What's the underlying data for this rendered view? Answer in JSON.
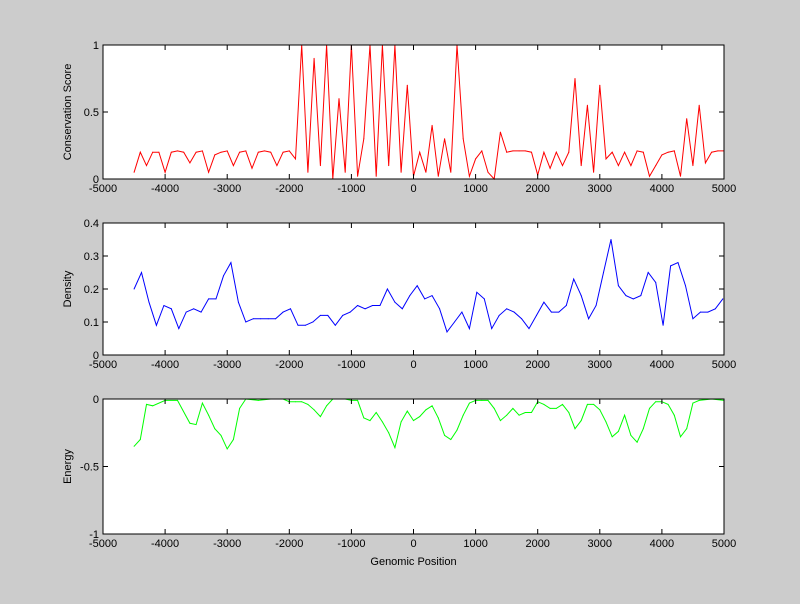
{
  "chart_data": [
    {
      "type": "line",
      "title": "",
      "xlabel": "",
      "ylabel": "Conservation Score",
      "xlim": [
        -5000,
        5000
      ],
      "ylim": [
        0,
        1
      ],
      "xticks": [
        "-5000",
        "-4000",
        "-3000",
        "-2000",
        "-1000",
        "0",
        "1000",
        "2000",
        "3000",
        "4000",
        "5000"
      ],
      "yticks": [
        "0",
        "0.5",
        "1"
      ],
      "color": "#ff0000",
      "series": [
        {
          "name": "conservation",
          "x": [
            -4500,
            -4400,
            -4300,
            -4200,
            -4100,
            -4000,
            -3900,
            -3800,
            -3700,
            -3600,
            -3500,
            -3400,
            -3300,
            -3200,
            -3100,
            -3000,
            -2900,
            -2800,
            -2700,
            -2600,
            -2500,
            -2400,
            -2300,
            -2200,
            -2100,
            -2000,
            -1900,
            -1800,
            -1700,
            -1600,
            -1500,
            -1400,
            -1300,
            -1200,
            -1100,
            -1000,
            -900,
            -800,
            -700,
            -600,
            -500,
            -400,
            -300,
            -200,
            -100,
            0,
            100,
            200,
            300,
            400,
            500,
            600,
            700,
            800,
            900,
            1000,
            1100,
            1200,
            1300,
            1400,
            1500,
            1600,
            1700,
            1800,
            1900,
            2000,
            2100,
            2200,
            2300,
            2400,
            2500,
            2600,
            2700,
            2800,
            2900,
            3000,
            3100,
            3200,
            3300,
            3400,
            3500,
            3600,
            3700,
            3800,
            3900,
            4000,
            4100,
            4200,
            4300,
            4400,
            4500,
            4600,
            4700,
            4800,
            4900,
            5000
          ],
          "y": [
            0.05,
            0.2,
            0.1,
            0.2,
            0.2,
            0.05,
            0.2,
            0.21,
            0.2,
            0.12,
            0.2,
            0.21,
            0.05,
            0.18,
            0.2,
            0.21,
            0.1,
            0.2,
            0.21,
            0.08,
            0.2,
            0.21,
            0.2,
            0.1,
            0.2,
            0.21,
            0.15,
            1.0,
            0.05,
            0.9,
            0.1,
            1.0,
            0.0,
            0.6,
            0.05,
            1.0,
            0.02,
            0.3,
            1.0,
            0.02,
            1.0,
            0.1,
            1.0,
            0.05,
            0.7,
            0.02,
            0.2,
            0.05,
            0.4,
            0.02,
            0.3,
            0.05,
            1.0,
            0.3,
            0.02,
            0.15,
            0.21,
            0.05,
            0.0,
            0.35,
            0.2,
            0.21,
            0.21,
            0.21,
            0.2,
            0.03,
            0.2,
            0.08,
            0.2,
            0.1,
            0.2,
            0.75,
            0.1,
            0.55,
            0.05,
            0.7,
            0.15,
            0.2,
            0.1,
            0.2,
            0.1,
            0.21,
            0.2,
            0.02,
            0.1,
            0.18,
            0.2,
            0.21,
            0.02,
            0.45,
            0.1,
            0.55,
            0.12,
            0.2,
            0.21,
            0.21
          ]
        }
      ]
    },
    {
      "type": "line",
      "title": "",
      "xlabel": "",
      "ylabel": "Density",
      "xlim": [
        -5000,
        5000
      ],
      "ylim": [
        0,
        0.4
      ],
      "xticks": [
        "-5000",
        "-4000",
        "-3000",
        "-2000",
        "-1000",
        "0",
        "1000",
        "2000",
        "3000",
        "4000",
        "5000"
      ],
      "yticks": [
        "0",
        "0.1",
        "0.2",
        "0.3",
        "0.4"
      ],
      "color": "#0000ff",
      "series": [
        {
          "name": "density",
          "x_start": -4500,
          "x_step": 120,
          "y": [
            0.2,
            0.25,
            0.16,
            0.09,
            0.15,
            0.14,
            0.08,
            0.13,
            0.14,
            0.13,
            0.17,
            0.17,
            0.24,
            0.28,
            0.16,
            0.1,
            0.11,
            0.11,
            0.11,
            0.11,
            0.13,
            0.14,
            0.09,
            0.09,
            0.1,
            0.12,
            0.12,
            0.09,
            0.12,
            0.13,
            0.15,
            0.14,
            0.15,
            0.15,
            0.2,
            0.16,
            0.14,
            0.18,
            0.21,
            0.17,
            0.18,
            0.14,
            0.07,
            0.1,
            0.13,
            0.08,
            0.19,
            0.17,
            0.08,
            0.12,
            0.14,
            0.13,
            0.11,
            0.08,
            0.12,
            0.16,
            0.13,
            0.13,
            0.15,
            0.23,
            0.18,
            0.11,
            0.15,
            0.25,
            0.35,
            0.21,
            0.18,
            0.17,
            0.18,
            0.25,
            0.22,
            0.09,
            0.27,
            0.28,
            0.21,
            0.11,
            0.13,
            0.13,
            0.14,
            0.17
          ]
        }
      ]
    },
    {
      "type": "line",
      "title": "",
      "xlabel": "Genomic Position",
      "ylabel": "Energy",
      "xlim": [
        -5000,
        5000
      ],
      "ylim": [
        -1,
        0
      ],
      "xticks": [
        "-5000",
        "-4000",
        "-3000",
        "-2000",
        "-1000",
        "0",
        "1000",
        "2000",
        "3000",
        "4000",
        "5000"
      ],
      "yticks": [
        "-1",
        "-0.5",
        "0"
      ],
      "color": "#00ff00",
      "series": [
        {
          "name": "energy",
          "x": [
            -4500,
            -4400,
            -4300,
            -4200,
            -4000,
            -3800,
            -3600,
            -3500,
            -3400,
            -3300,
            -3200,
            -3100,
            -3000,
            -2900,
            -2800,
            -2700,
            -2500,
            -2300,
            -2100,
            -2000,
            -1900,
            -1800,
            -1700,
            -1600,
            -1500,
            -1400,
            -1300,
            -1100,
            -1000,
            -900,
            -800,
            -700,
            -600,
            -500,
            -400,
            -300,
            -200,
            -100,
            0,
            100,
            200,
            300,
            400,
            500,
            600,
            700,
            800,
            900,
            1000,
            1100,
            1200,
            1300,
            1400,
            1500,
            1600,
            1700,
            1800,
            1900,
            2000,
            2100,
            2200,
            2300,
            2400,
            2500,
            2600,
            2700,
            2800,
            2900,
            3000,
            3100,
            3200,
            3300,
            3400,
            3500,
            3600,
            3700,
            3800,
            3900,
            4000,
            4100,
            4200,
            4300,
            4400,
            4500,
            4600,
            4800,
            5000
          ],
          "y": [
            -0.35,
            -0.3,
            -0.04,
            -0.05,
            -0.01,
            -0.01,
            -0.18,
            -0.19,
            -0.03,
            -0.12,
            -0.22,
            -0.27,
            -0.37,
            -0.3,
            -0.07,
            0,
            -0.01,
            0,
            0,
            -0.02,
            -0.02,
            -0.02,
            -0.04,
            -0.08,
            -0.13,
            -0.05,
            0,
            0,
            -0.01,
            -0.01,
            -0.14,
            -0.16,
            -0.1,
            -0.17,
            -0.25,
            -0.36,
            -0.17,
            -0.09,
            -0.16,
            -0.13,
            -0.08,
            -0.05,
            -0.14,
            -0.27,
            -0.3,
            -0.23,
            -0.12,
            -0.03,
            -0.01,
            -0.01,
            -0.01,
            -0.07,
            -0.16,
            -0.12,
            -0.07,
            -0.12,
            -0.1,
            -0.1,
            -0.02,
            -0.04,
            -0.07,
            -0.07,
            -0.04,
            -0.1,
            -0.22,
            -0.16,
            -0.04,
            -0.04,
            -0.08,
            -0.17,
            -0.28,
            -0.24,
            -0.12,
            -0.27,
            -0.32,
            -0.22,
            -0.07,
            -0.02,
            -0.02,
            -0.04,
            -0.12,
            -0.28,
            -0.22,
            -0.03,
            -0.01,
            0,
            -0.01
          ]
        }
      ]
    }
  ]
}
